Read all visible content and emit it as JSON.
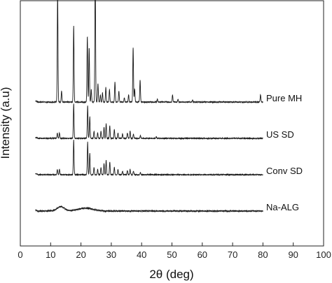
{
  "chart_data": {
    "type": "line",
    "xlabel": "2θ (deg)",
    "ylabel": "Intensity (a.u)",
    "xlim": [
      0,
      100
    ],
    "xticks": [
      "0",
      "10",
      "20",
      "30",
      "40",
      "50",
      "60",
      "70",
      "80",
      "90",
      "100"
    ],
    "yticks_shown": false,
    "grid": false,
    "legend": "inline labels at right of each trace",
    "x_range_measured": [
      5,
      80
    ],
    "series": [
      {
        "name": "Pure MH",
        "baseline": 3.0,
        "noise": 0.012,
        "halo": [],
        "peaks": [
          [
            12.3,
            3.0,
            0.12
          ],
          [
            13.6,
            0.3,
            0.12
          ],
          [
            17.6,
            2.1,
            0.12
          ],
          [
            22.1,
            1.8,
            0.12
          ],
          [
            22.7,
            1.5,
            0.12
          ],
          [
            23.4,
            0.35,
            0.12
          ],
          [
            24.7,
            3.6,
            0.12
          ],
          [
            25.6,
            0.5,
            0.12
          ],
          [
            26.4,
            0.2,
            0.12
          ],
          [
            27.1,
            0.25,
            0.12
          ],
          [
            28.2,
            0.4,
            0.12
          ],
          [
            29.4,
            0.35,
            0.12
          ],
          [
            31.2,
            0.55,
            0.12
          ],
          [
            32.5,
            0.3,
            0.12
          ],
          [
            34.3,
            0.12,
            0.12
          ],
          [
            35.7,
            0.2,
            0.12
          ],
          [
            37.2,
            1.5,
            0.12
          ],
          [
            37.7,
            0.35,
            0.12
          ],
          [
            39.5,
            0.6,
            0.12
          ],
          [
            45.2,
            0.08,
            0.12
          ],
          [
            50.2,
            0.2,
            0.12
          ],
          [
            52.0,
            0.08,
            0.12
          ],
          [
            56.8,
            0.06,
            0.12
          ],
          [
            79.2,
            0.2,
            0.12
          ]
        ]
      },
      {
        "name": "US SD",
        "baseline": 2.0,
        "noise": 0.012,
        "halo": [],
        "peaks": [
          [
            12.2,
            0.15,
            0.12
          ],
          [
            12.9,
            0.15,
            0.12
          ],
          [
            17.6,
            0.95,
            0.12
          ],
          [
            22.2,
            0.9,
            0.12
          ],
          [
            22.9,
            0.6,
            0.12
          ],
          [
            24.3,
            0.2,
            0.12
          ],
          [
            25.5,
            0.15,
            0.12
          ],
          [
            26.6,
            0.2,
            0.12
          ],
          [
            27.6,
            0.3,
            0.12
          ],
          [
            28.3,
            0.4,
            0.12
          ],
          [
            29.5,
            0.35,
            0.12
          ],
          [
            31.0,
            0.25,
            0.12
          ],
          [
            32.2,
            0.15,
            0.12
          ],
          [
            33.7,
            0.12,
            0.12
          ],
          [
            35.3,
            0.15,
            0.12
          ],
          [
            36.2,
            0.2,
            0.12
          ],
          [
            37.3,
            0.12,
            0.12
          ],
          [
            39.6,
            0.08,
            0.12
          ],
          [
            44.8,
            0.05,
            0.12
          ]
        ]
      },
      {
        "name": "Conv SD",
        "baseline": 1.0,
        "noise": 0.012,
        "halo": [],
        "peaks": [
          [
            12.2,
            0.15,
            0.12
          ],
          [
            12.9,
            0.15,
            0.12
          ],
          [
            17.6,
            0.95,
            0.12
          ],
          [
            22.2,
            0.9,
            0.12
          ],
          [
            22.9,
            0.6,
            0.12
          ],
          [
            24.3,
            0.2,
            0.12
          ],
          [
            25.5,
            0.15,
            0.12
          ],
          [
            26.6,
            0.2,
            0.12
          ],
          [
            27.6,
            0.3,
            0.12
          ],
          [
            28.3,
            0.4,
            0.12
          ],
          [
            29.5,
            0.35,
            0.12
          ],
          [
            31.0,
            0.2,
            0.12
          ],
          [
            32.2,
            0.15,
            0.12
          ],
          [
            33.7,
            0.1,
            0.12
          ],
          [
            35.3,
            0.12,
            0.12
          ],
          [
            36.2,
            0.15,
            0.12
          ],
          [
            37.3,
            0.1,
            0.12
          ],
          [
            39.6,
            0.06,
            0.12
          ]
        ]
      },
      {
        "name": "Na-ALG",
        "baseline": 0.0,
        "noise": 0.018,
        "halo": [
          [
            13.3,
            0.12,
            1.2
          ],
          [
            21.5,
            0.08,
            2.5
          ]
        ],
        "peaks": []
      }
    ]
  }
}
